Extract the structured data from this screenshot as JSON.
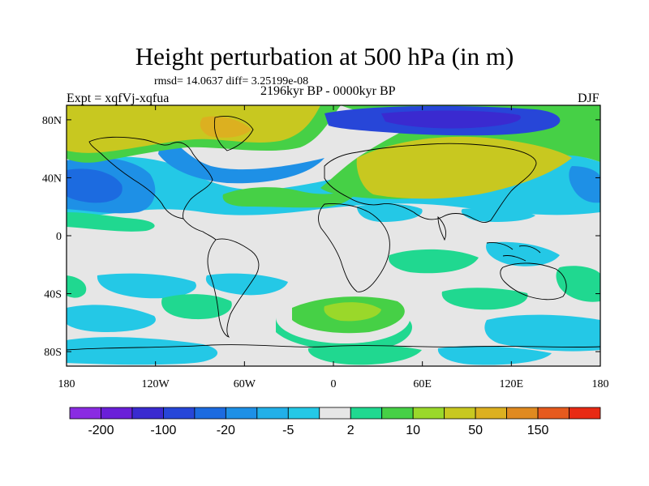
{
  "title": "Height perturbation at 500 hPa (in m)",
  "stats_line": "rmsd= 14.0637 diff= 3.25199e-08",
  "period": "2196kyr BP - 0000kyr BP",
  "experiment": "Expt = xqfVj-xqfua",
  "season": "DJF",
  "lat_ticks": [
    {
      "label": "80N",
      "lat": 80
    },
    {
      "label": "40N",
      "lat": 40
    },
    {
      "label": "0",
      "lat": 0
    },
    {
      "label": "40S",
      "lat": -40
    },
    {
      "label": "80S",
      "lat": -80
    }
  ],
  "lon_ticks": [
    {
      "label": "180",
      "lon": -180
    },
    {
      "label": "120W",
      "lon": -120
    },
    {
      "label": "60W",
      "lon": -60
    },
    {
      "label": "0",
      "lon": 0
    },
    {
      "label": "60E",
      "lon": 60
    },
    {
      "label": "120E",
      "lon": 120
    },
    {
      "label": "180",
      "lon": 180
    }
  ],
  "colorbar": {
    "colors": [
      "#8a2be2",
      "#6a1fd8",
      "#3a2ad0",
      "#2746d8",
      "#1c6be0",
      "#1e90e6",
      "#22b0e8",
      "#24c8e6",
      "#e6e6e6",
      "#20d890",
      "#46d046",
      "#9ad82a",
      "#c8c820",
      "#dcb020",
      "#e08a20",
      "#e65a1e",
      "#e82a14"
    ],
    "labels": [
      {
        "text": "-200",
        "boundary": 1
      },
      {
        "text": "-100",
        "boundary": 3
      },
      {
        "text": "-20",
        "boundary": 5
      },
      {
        "text": "-5",
        "boundary": 7
      },
      {
        "text": "2",
        "boundary": 9
      },
      {
        "text": "10",
        "boundary": 11
      },
      {
        "text": "50",
        "boundary": 13
      },
      {
        "text": "150",
        "boundary": 15
      }
    ]
  },
  "field_colors": {
    "neutral": "#e6e6e6",
    "light_green": "#20d890",
    "green": "#46d046",
    "yellow_green": "#9ad82a",
    "olive": "#c8c820",
    "gold": "#dcb020",
    "cyan": "#24c8e6",
    "sky": "#22b0e8",
    "blue": "#1e90e6",
    "mid_blue": "#1c6be0",
    "dark_blue": "#2746d8",
    "indigo": "#3a2ad0"
  }
}
